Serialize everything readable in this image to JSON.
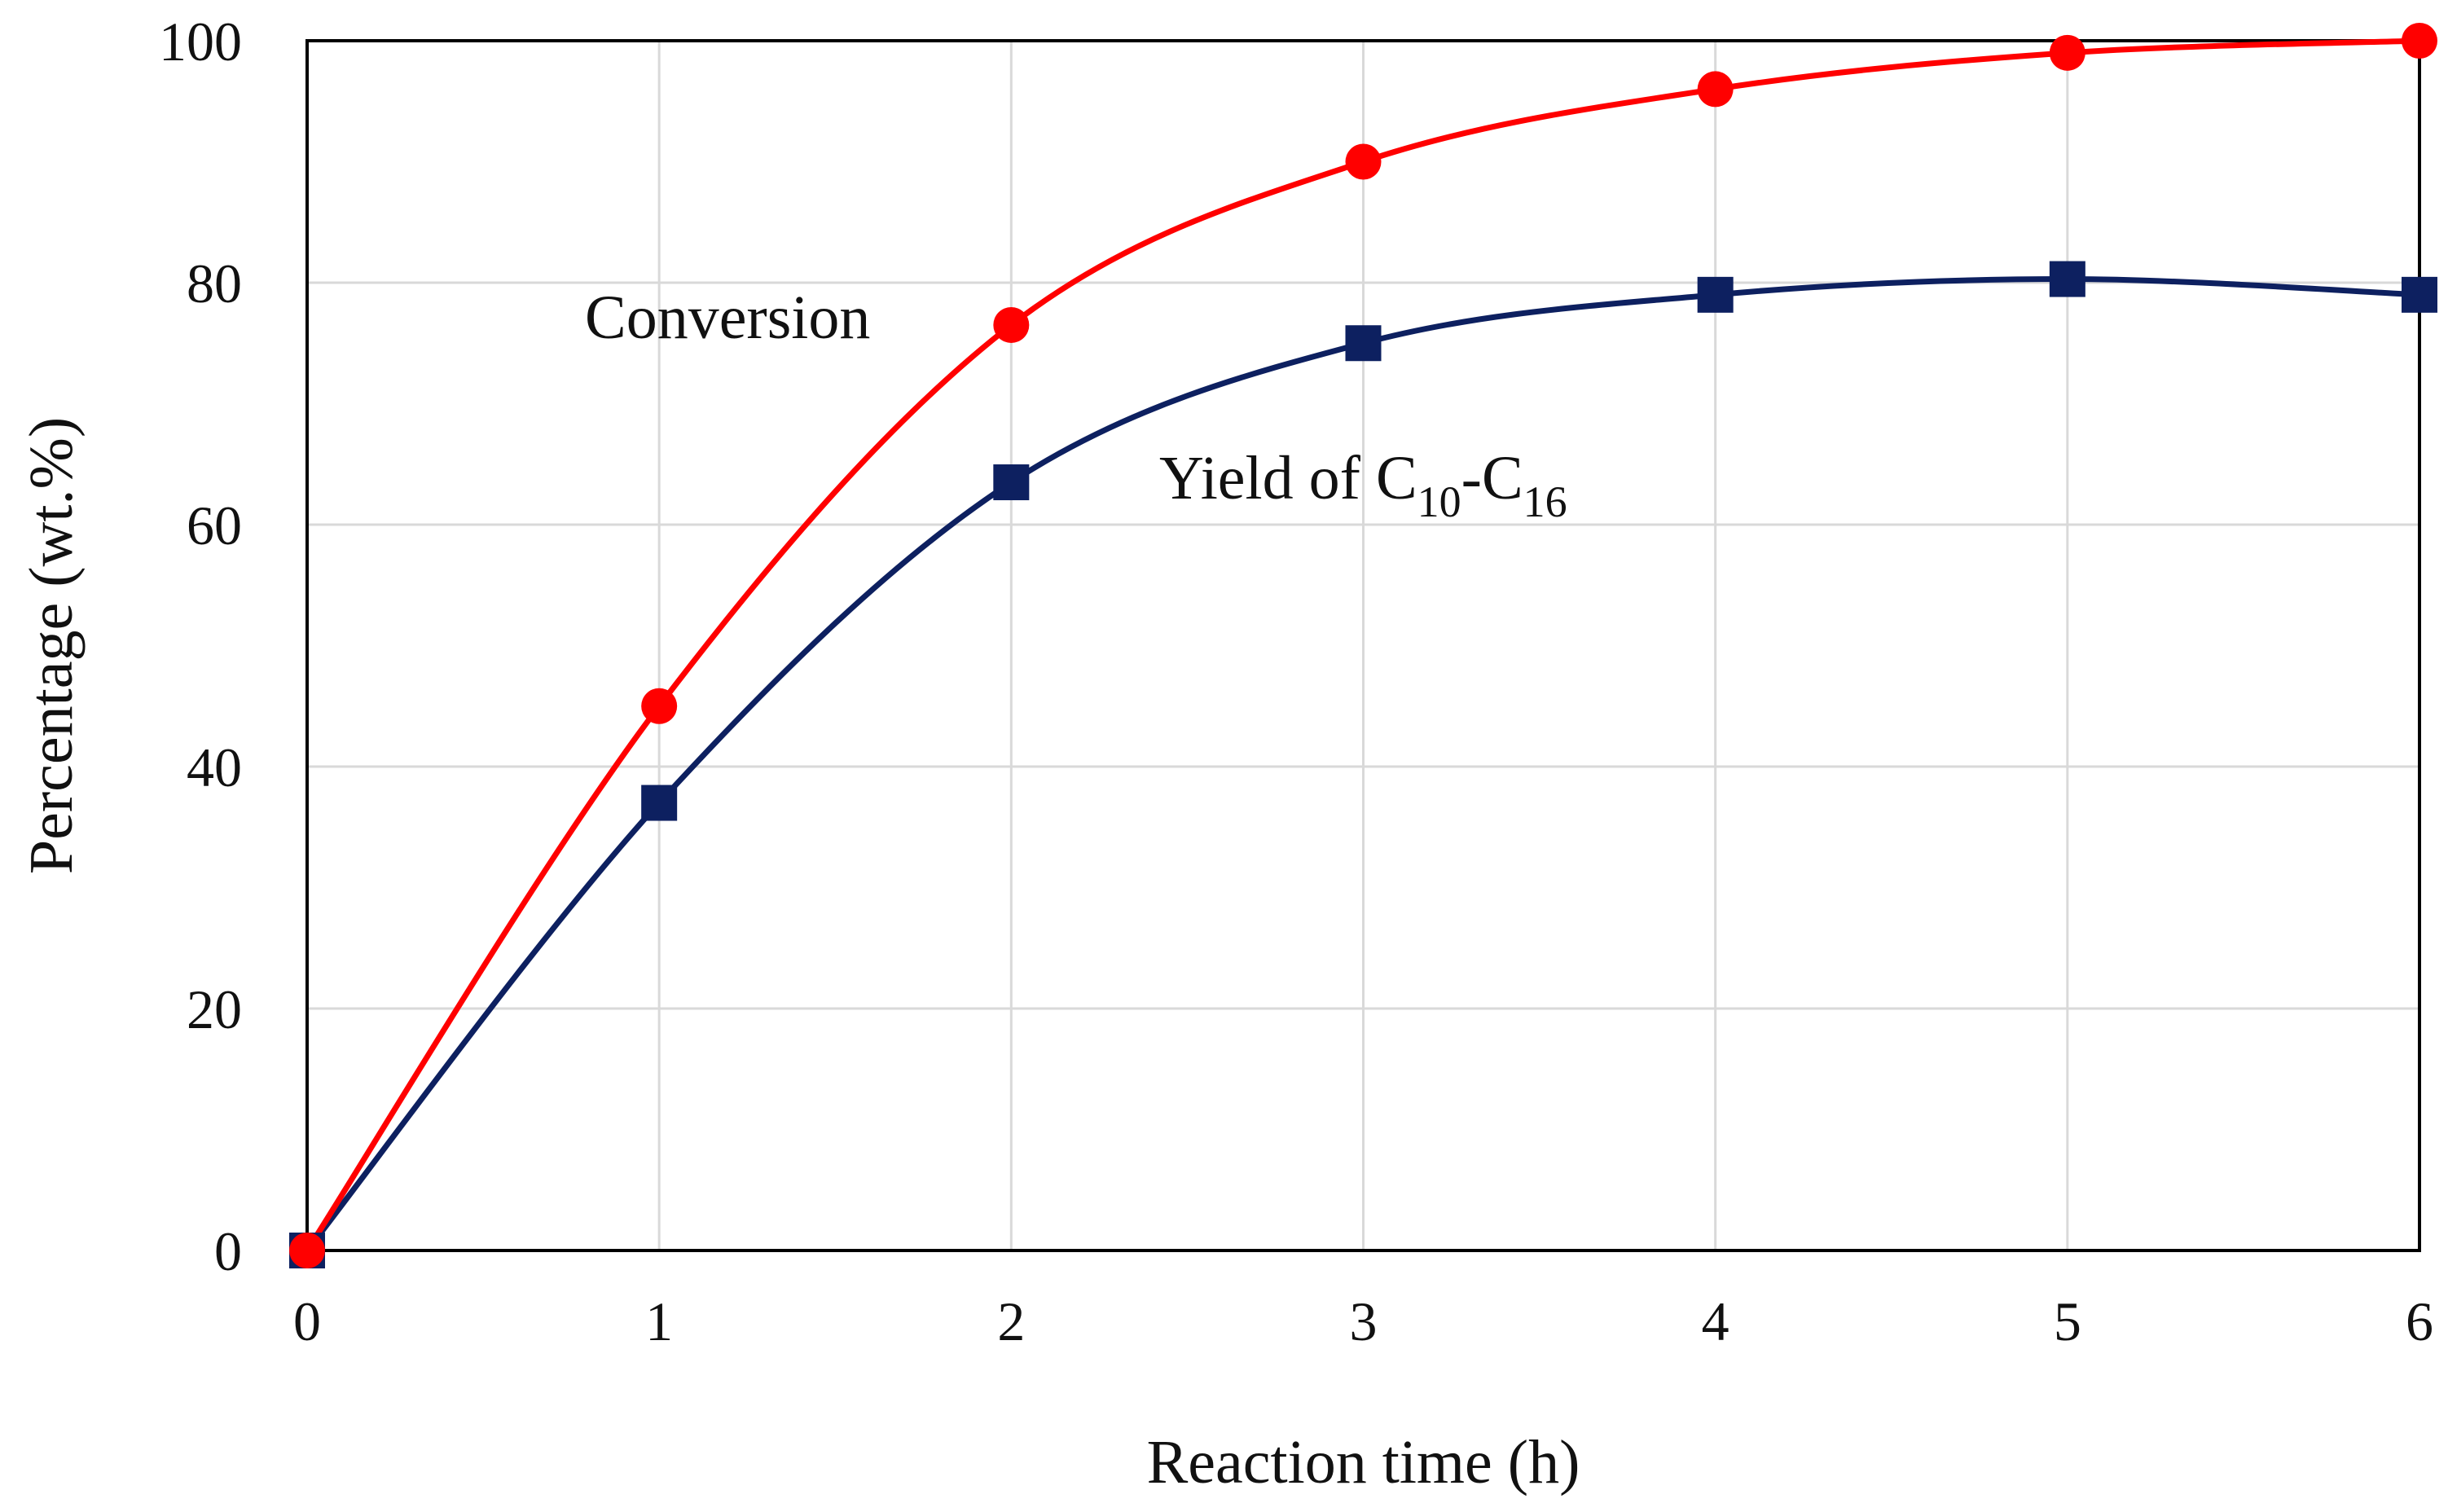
{
  "chart_data": {
    "type": "line",
    "title": "",
    "xlabel": "Reaction time (h)",
    "ylabel": "Percentage (wt.%)",
    "xlim": [
      0,
      6
    ],
    "ylim": [
      0,
      100
    ],
    "xticks": [
      "0",
      "1",
      "2",
      "3",
      "4",
      "5",
      "6"
    ],
    "yticks": [
      "0",
      "20",
      "40",
      "60",
      "80",
      "100"
    ],
    "grid": true,
    "x": [
      0,
      1,
      2,
      3,
      4,
      5,
      6
    ],
    "series": [
      {
        "name": "Conversion",
        "label": "Conversion",
        "marker": "circle",
        "color": "#ff0000",
        "values": [
          0,
          45,
          76.5,
          90,
          96,
          99,
          100
        ]
      },
      {
        "name": "Yield of C10-C16",
        "label_parts": [
          "Yield of C",
          "10",
          "-C",
          "16"
        ],
        "marker": "square",
        "color": "#0d2060",
        "values": [
          0,
          37,
          63.5,
          75,
          79,
          80.3,
          79
        ]
      }
    ]
  }
}
